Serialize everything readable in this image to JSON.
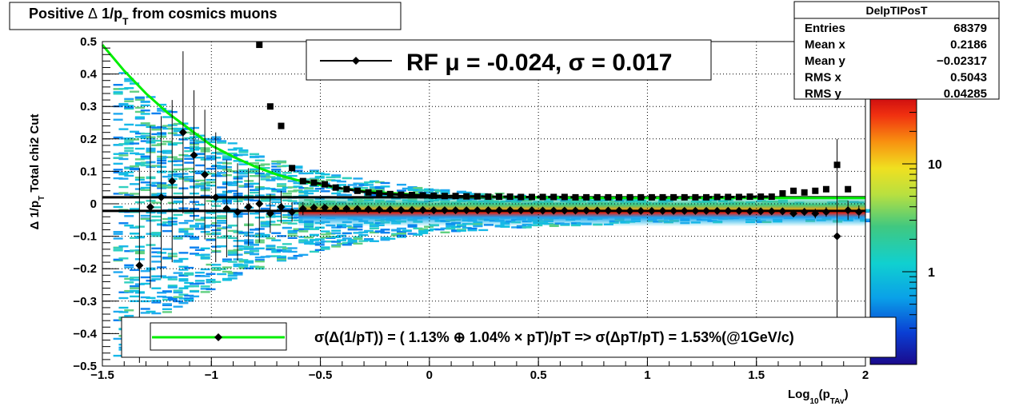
{
  "chart_data": {
    "type": "heatmap",
    "title": "Positive Δ 1/p_T from cosmics muons",
    "title_parts": [
      "Positive ",
      "Δ",
      " 1/p",
      "T",
      " from cosmics muons"
    ],
    "xlabel": "Log_10(p_TAv)",
    "xlabel_parts": [
      "Log",
      "10",
      "(p",
      "TAv",
      ")"
    ],
    "ylabel": "Δ 1/p_T   Total chi2 Cut",
    "ylabel_parts": [
      "Δ 1/p",
      "T",
      "   Total chi2 Cut"
    ],
    "xlim": [
      -1.5,
      2.0
    ],
    "ylim": [
      -0.5,
      0.5
    ],
    "grid": true,
    "x_ticks": [
      "−1.5",
      "−1",
      "−0.5",
      "0",
      "0.5",
      "1",
      "1.5",
      "2"
    ],
    "x_tick_values": [
      -1.5,
      -1,
      -0.5,
      0,
      0.5,
      1,
      1.5,
      2
    ],
    "y_ticks": [
      "0.5",
      "0.4",
      "0.3",
      "0.2",
      "0.1",
      "0",
      "−0.1",
      "−0.2",
      "−0.3",
      "−0.4",
      "−0.5"
    ],
    "y_tick_values": [
      0.5,
      0.4,
      0.3,
      0.2,
      0.1,
      0,
      -0.1,
      -0.2,
      -0.3,
      -0.4,
      -0.5
    ],
    "z_scale": "log",
    "z_ticks": [
      "10",
      "1"
    ],
    "z_tick_values": [
      10,
      1
    ],
    "colors": {
      "green_fit": "#00ee00",
      "marker": "#000000"
    },
    "stats": {
      "name": "DelpTIPosT",
      "rows": [
        {
          "label": "Entries",
          "value": "68379"
        },
        {
          "label": "Mean x",
          "value": "0.2186"
        },
        {
          "label": "Mean y",
          "value": "−0.02317"
        },
        {
          "label": "RMS x",
          "value": "0.5043"
        },
        {
          "label": "RMS y",
          "value": "0.04285"
        }
      ]
    },
    "legend_top": "RF μ = -0.024, σ =   0.017",
    "legend_top_placement": "top-center",
    "legend_bottom": "σ(Δ(1/pT)) = ( 1.13% ⊕  1.04% × pT)/pT => σ(ΔpT/pT) =  1.53%(@1GeV/c)",
    "legend_bottom_placement": "bottom-center",
    "horizontal_lines": [
      0.02,
      -0.022
    ],
    "mean_points": {
      "x": [
        -1.33,
        -1.28,
        -1.23,
        -1.18,
        -1.13,
        -1.08,
        -1.03,
        -0.98,
        -0.93,
        -0.88,
        -0.83,
        -0.78,
        -0.73,
        -0.68,
        -0.63,
        -0.58,
        -0.53,
        -0.48,
        -0.43,
        -0.38,
        -0.33,
        -0.28,
        -0.23,
        -0.18,
        -0.13,
        -0.08,
        -0.03,
        0.02,
        0.07,
        0.12,
        0.17,
        0.22,
        0.27,
        0.32,
        0.37,
        0.42,
        0.47,
        0.52,
        0.57,
        0.62,
        0.67,
        0.72,
        0.77,
        0.82,
        0.87,
        0.92,
        0.97,
        1.02,
        1.07,
        1.12,
        1.17,
        1.22,
        1.27,
        1.32,
        1.37,
        1.42,
        1.47,
        1.52,
        1.57,
        1.62,
        1.67,
        1.72,
        1.77,
        1.82,
        1.87,
        1.92,
        1.97
      ],
      "y": [
        -0.19,
        -0.01,
        0.02,
        0.07,
        0.22,
        0.15,
        0.09,
        0.02,
        -0.015,
        -0.025,
        -0.01,
        0.0,
        -0.03,
        -0.01,
        -0.025,
        -0.015,
        -0.012,
        -0.012,
        -0.015,
        -0.015,
        -0.016,
        -0.017,
        -0.018,
        -0.018,
        -0.019,
        -0.019,
        -0.019,
        -0.02,
        -0.02,
        -0.02,
        -0.02,
        -0.02,
        -0.02,
        -0.02,
        -0.02,
        -0.02,
        -0.02,
        -0.021,
        -0.021,
        -0.021,
        -0.021,
        -0.021,
        -0.021,
        -0.021,
        -0.021,
        -0.022,
        -0.022,
        -0.022,
        -0.022,
        -0.022,
        -0.022,
        -0.022,
        -0.022,
        -0.022,
        -0.022,
        -0.022,
        -0.023,
        -0.023,
        -0.023,
        -0.023,
        -0.03,
        -0.025,
        -0.03,
        -0.025,
        -0.1,
        -0.02,
        -0.025
      ],
      "yerr": [
        0.3,
        0.25,
        0.25,
        0.25,
        0.25,
        0.2,
        0.2,
        0.2,
        0.15,
        0.15,
        0.12,
        0.12,
        0.06,
        0.05,
        0.03,
        0.02,
        0.012,
        0.01,
        0.008,
        0.006,
        0.005,
        0.005,
        0.004,
        0.004,
        0.003,
        0.003,
        0.003,
        0.003,
        0.003,
        0.003,
        0.003,
        0.003,
        0.003,
        0.003,
        0.003,
        0.003,
        0.003,
        0.003,
        0.003,
        0.003,
        0.003,
        0.003,
        0.003,
        0.003,
        0.003,
        0.003,
        0.003,
        0.003,
        0.003,
        0.003,
        0.003,
        0.003,
        0.003,
        0.003,
        0.003,
        0.004,
        0.004,
        0.005,
        0.006,
        0.008,
        0.01,
        0.012,
        0.015,
        0.015,
        0.3,
        0.03,
        0.02
      ]
    },
    "rms_points": {
      "x": [
        -0.78,
        -0.73,
        -0.68,
        -0.63,
        -0.58,
        -0.53,
        -0.48,
        -0.43,
        -0.38,
        -0.33,
        -0.28,
        -0.23,
        -0.18,
        -0.13,
        -0.08,
        -0.03,
        0.02,
        0.07,
        0.12,
        0.17,
        0.22,
        0.27,
        0.32,
        0.37,
        0.42,
        0.47,
        0.52,
        0.57,
        0.62,
        0.67,
        0.72,
        0.77,
        0.82,
        0.87,
        0.92,
        0.97,
        1.02,
        1.07,
        1.12,
        1.17,
        1.22,
        1.27,
        1.32,
        1.37,
        1.42,
        1.47,
        1.52,
        1.57,
        1.62,
        1.67,
        1.72,
        1.77,
        1.82,
        1.87,
        1.92
      ],
      "y": [
        0.49,
        0.3,
        0.24,
        0.11,
        0.07,
        0.065,
        0.06,
        0.05,
        0.045,
        0.04,
        0.035,
        0.032,
        0.03,
        0.028,
        0.027,
        0.026,
        0.025,
        0.024,
        0.024,
        0.023,
        0.023,
        0.022,
        0.022,
        0.022,
        0.021,
        0.021,
        0.021,
        0.021,
        0.021,
        0.02,
        0.02,
        0.02,
        0.02,
        0.02,
        0.02,
        0.02,
        0.02,
        0.02,
        0.02,
        0.02,
        0.02,
        0.02,
        0.021,
        0.021,
        0.021,
        0.022,
        0.022,
        0.022,
        0.032,
        0.04,
        0.035,
        0.04,
        0.045,
        0.12,
        0.045
      ]
    },
    "fit_curve": {
      "x": [
        -1.5,
        -1.4,
        -1.3,
        -1.2,
        -1.1,
        -1.0,
        -0.9,
        -0.8,
        -0.7,
        -0.6,
        -0.5,
        -0.4,
        -0.3,
        -0.2,
        -0.1,
        0.0,
        0.2,
        0.4,
        0.6,
        0.8,
        1.0,
        1.2,
        1.4,
        1.6,
        1.8,
        2.0
      ],
      "y": [
        0.49,
        0.41,
        0.34,
        0.28,
        0.23,
        0.18,
        0.145,
        0.115,
        0.09,
        0.072,
        0.058,
        0.047,
        0.04,
        0.034,
        0.03,
        0.026,
        0.022,
        0.02,
        0.019,
        0.018,
        0.018,
        0.018,
        0.018,
        0.018,
        0.018,
        0.018
      ]
    }
  }
}
